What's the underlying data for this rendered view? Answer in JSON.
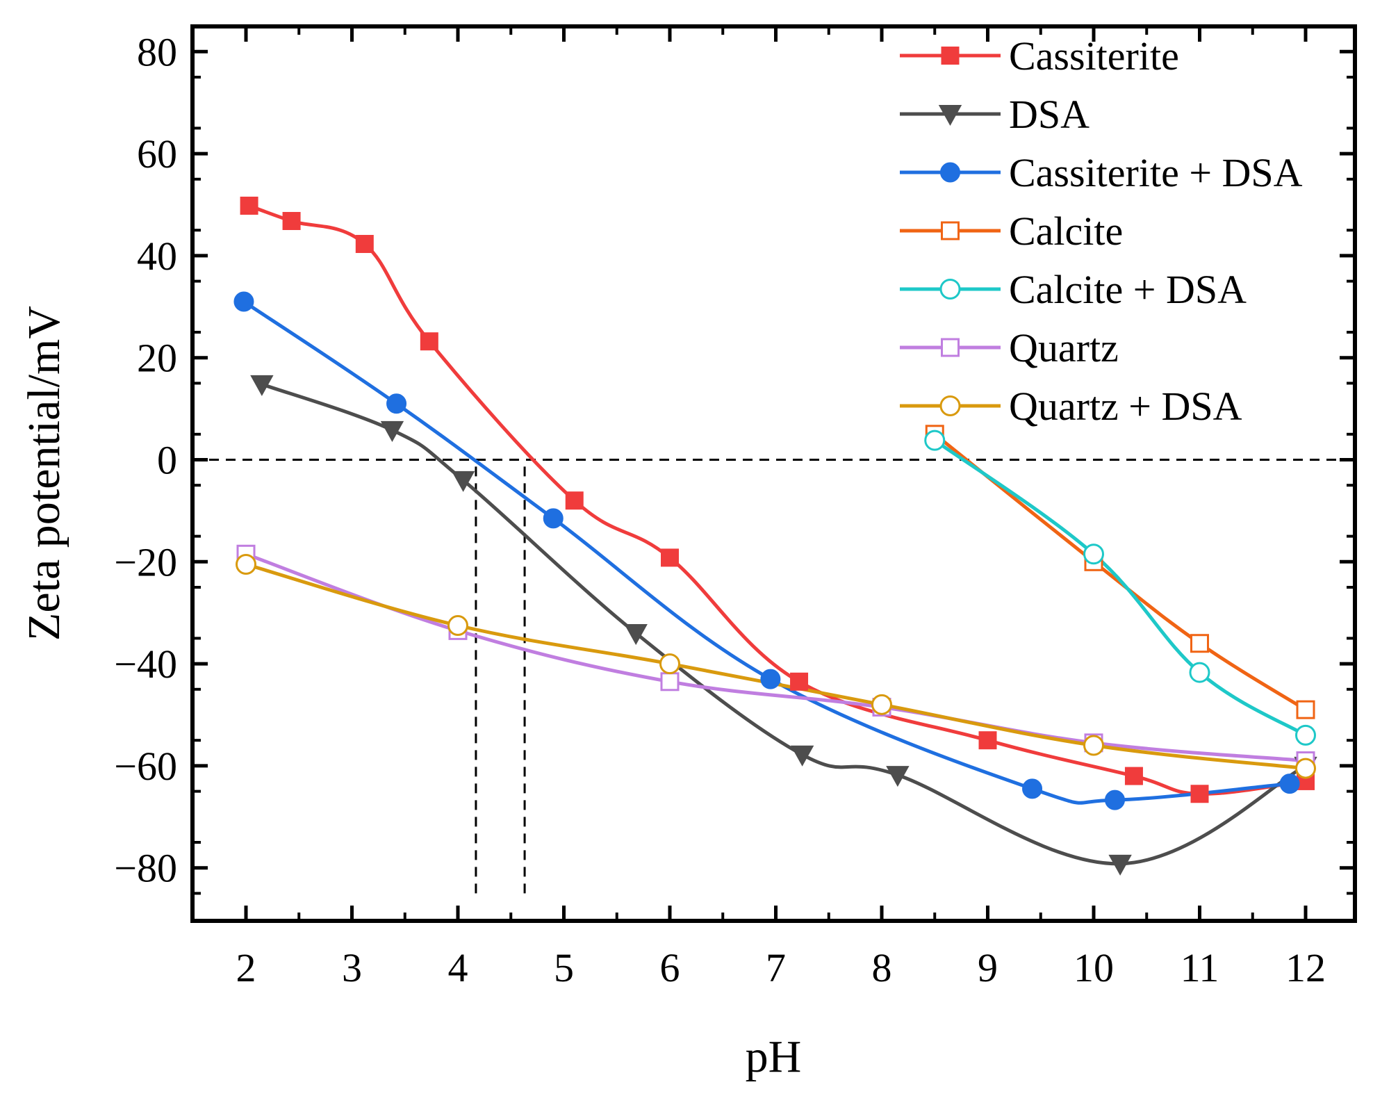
{
  "chart_data": {
    "type": "line",
    "title": "",
    "xlabel": "pH",
    "ylabel": "Zeta potential/mV",
    "xlim": [
      1.5,
      12.4
    ],
    "ylim": [
      -89,
      88
    ],
    "x_ticks": [
      2,
      3,
      4,
      5,
      6,
      7,
      8,
      9,
      10,
      11,
      12
    ],
    "x_tick_labels": [
      "2",
      "3",
      "4",
      "5",
      "6",
      "7",
      "8",
      "9",
      "10",
      "11",
      "12"
    ],
    "y_ticks": [
      80,
      60,
      40,
      20,
      0,
      -20,
      -40,
      -60,
      -80
    ],
    "y_tick_labels": [
      "80",
      "60",
      "40",
      "20",
      "0",
      "−20",
      "−40",
      "−60",
      "−80"
    ],
    "legend_position": "top-right",
    "reference_lines": [
      {
        "kind": "horizontal",
        "y": 0,
        "style": "dashed"
      },
      {
        "kind": "vertical",
        "x": 4.17,
        "y_from": -85,
        "y_to": 0,
        "style": "dashed"
      },
      {
        "kind": "vertical",
        "x": 4.63,
        "y_from": -85,
        "y_to": 0,
        "style": "dashed"
      }
    ],
    "series": [
      {
        "name": "Cassiterite",
        "color": "#f03c3c",
        "marker": "square",
        "filled": true,
        "x": [
          2.03,
          2.43,
          3.12,
          3.73,
          5.1,
          6.0,
          7.22,
          9.0,
          10.38,
          11.0,
          12.0
        ],
        "y": [
          49.8,
          46.8,
          42.3,
          23.2,
          -8,
          -19.2,
          -43.5,
          -55,
          -62,
          -65.5,
          -63
        ]
      },
      {
        "name": "DSA",
        "color": "#4d4d4d",
        "marker": "triangle-down",
        "filled": true,
        "x": [
          2.15,
          3.38,
          4.05,
          5.68,
          7.25,
          8.15,
          10.25,
          12.0
        ],
        "y": [
          14.8,
          5.8,
          -4,
          -34,
          -57.8,
          -61.8,
          -79.2,
          -60
        ]
      },
      {
        "name": "Cassiterite + DSA",
        "color": "#1f6fe0",
        "marker": "circle",
        "filled": true,
        "x": [
          1.98,
          3.42,
          4.9,
          6.95,
          9.42,
          10.2,
          11.85
        ],
        "y": [
          31,
          11,
          -11.5,
          -43,
          -64.5,
          -66.7,
          -63.5
        ]
      },
      {
        "name": "Calcite",
        "color": "#f06414",
        "marker": "square",
        "filled": false,
        "x": [
          8.5,
          10.0,
          11.0,
          12.0
        ],
        "y": [
          5,
          -20,
          -36,
          -49
        ]
      },
      {
        "name": "Calcite + DSA",
        "color": "#1ec8c8",
        "marker": "circle",
        "filled": false,
        "x": [
          8.5,
          10.0,
          11.0,
          12.0
        ],
        "y": [
          3.8,
          -18.5,
          -41.7,
          -54
        ]
      },
      {
        "name": "Quartz",
        "color": "#c07ee0",
        "marker": "square",
        "filled": false,
        "x": [
          2.0,
          4.0,
          6.0,
          8.0,
          10.0,
          12.0
        ],
        "y": [
          -18.5,
          -33.5,
          -43.5,
          -48.5,
          -55.5,
          -59
        ]
      },
      {
        "name": "Quartz + DSA",
        "color": "#d99a0e",
        "marker": "circle",
        "filled": false,
        "x": [
          2.0,
          4.0,
          6.0,
          8.0,
          10.0,
          12.0
        ],
        "y": [
          -20.5,
          -32.5,
          -40,
          -48,
          -56,
          -60.5
        ]
      }
    ]
  }
}
